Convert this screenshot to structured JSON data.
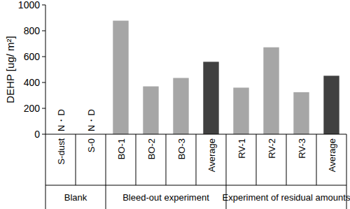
{
  "chart_data": {
    "type": "bar",
    "y_label": "DEHP [ug/ m²]",
    "categories": [
      "S-dust",
      "S-0",
      "BO-1",
      "BO-2",
      "BO-3",
      "Average",
      "RV-1",
      "RV-2",
      "RV-3",
      "Average"
    ],
    "values": [
      null,
      null,
      878,
      370,
      435,
      560,
      360,
      672,
      325,
      452
    ],
    "value_labels": [
      "N・D",
      "N・D",
      null,
      null,
      null,
      null,
      null,
      null,
      null,
      null
    ],
    "colors": [
      "#a6a6a6",
      "#a6a6a6",
      "#a6a6a6",
      "#a6a6a6",
      "#a6a6a6",
      "#404040",
      "#a6a6a6",
      "#a6a6a6",
      "#a6a6a6",
      "#404040"
    ],
    "groups": [
      {
        "label": "Blank",
        "count": 2
      },
      {
        "label": "Bleed-out experiment",
        "count": 4
      },
      {
        "label": "Experiment of residual amounts",
        "count": 4
      }
    ],
    "ylim": [
      0,
      1000
    ],
    "yticks": [
      0,
      200,
      400,
      600,
      800,
      1000
    ],
    "grid": false
  }
}
